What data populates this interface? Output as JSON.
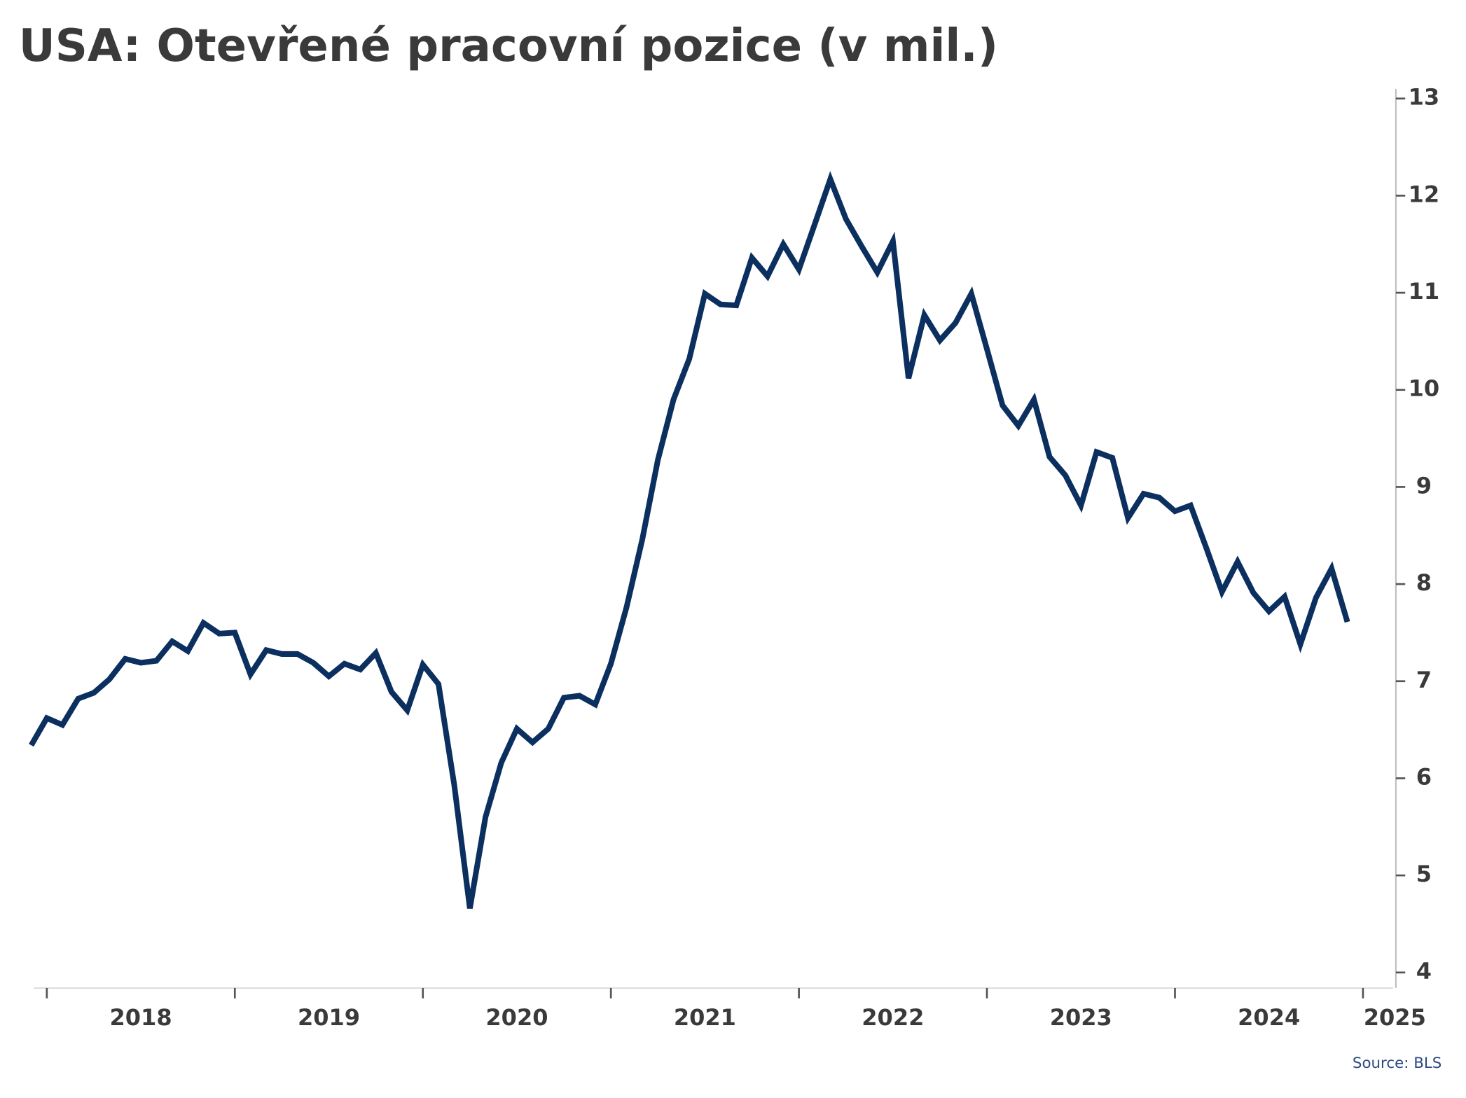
{
  "chart_data": {
    "type": "line",
    "title": "USA: Otevřené pracovní pozice (v mil.)",
    "source": "Source: BLS",
    "x": [
      2017.917,
      2018,
      2018.083,
      2018.167,
      2018.25,
      2018.333,
      2018.417,
      2018.5,
      2018.583,
      2018.667,
      2018.75,
      2018.833,
      2018.917,
      2019,
      2019.083,
      2019.167,
      2019.25,
      2019.333,
      2019.417,
      2019.5,
      2019.583,
      2019.667,
      2019.75,
      2019.833,
      2019.917,
      2020,
      2020.083,
      2020.167,
      2020.25,
      2020.333,
      2020.417,
      2020.5,
      2020.583,
      2020.667,
      2020.75,
      2020.833,
      2020.917,
      2021,
      2021.083,
      2021.167,
      2021.25,
      2021.333,
      2021.417,
      2021.5,
      2021.583,
      2021.667,
      2021.75,
      2021.833,
      2021.917,
      2022,
      2022.083,
      2022.167,
      2022.25,
      2022.333,
      2022.417,
      2022.5,
      2022.583,
      2022.667,
      2022.75,
      2022.833,
      2022.917,
      2023,
      2023.083,
      2023.167,
      2023.25,
      2023.333,
      2023.417,
      2023.5,
      2023.583,
      2023.667,
      2023.75,
      2023.833,
      2023.917,
      2024,
      2024.083,
      2024.167,
      2024.25,
      2024.333,
      2024.417,
      2024.5,
      2024.583,
      2024.667,
      2024.75,
      2024.833,
      2024.917
    ],
    "series": [
      {
        "name": "Otevřené pracovní pozice",
        "color": "#0b2f5e",
        "values": [
          6.34,
          6.62,
          6.55,
          6.82,
          6.88,
          7.02,
          7.23,
          7.19,
          7.21,
          7.41,
          7.31,
          7.6,
          7.49,
          7.5,
          7.07,
          7.32,
          7.28,
          7.28,
          7.19,
          7.05,
          7.18,
          7.12,
          7.29,
          6.89,
          6.7,
          7.17,
          6.97,
          5.93,
          4.66,
          5.6,
          6.16,
          6.51,
          6.37,
          6.51,
          6.83,
          6.85,
          6.76,
          7.18,
          7.76,
          8.46,
          9.28,
          9.9,
          10.32,
          10.99,
          10.88,
          10.87,
          11.36,
          11.17,
          11.5,
          11.24,
          11.7,
          12.17,
          11.76,
          11.48,
          11.21,
          11.53,
          10.12,
          10.77,
          10.51,
          10.69,
          10.99,
          10.42,
          9.84,
          9.63,
          9.9,
          9.31,
          9.12,
          8.81,
          9.36,
          9.3,
          8.68,
          8.93,
          8.89,
          8.75,
          8.81,
          8.37,
          7.92,
          8.23,
          7.91,
          7.72,
          7.87,
          7.38,
          7.86,
          8.16,
          7.61
        ]
      }
    ],
    "xlim": [
      2017.93,
      2025.16
    ],
    "xticks": [
      2018,
      2019,
      2020,
      2021,
      2022,
      2023,
      2024,
      2025
    ],
    "ylim": [
      3.84,
      13.1
    ],
    "yticks": [
      4,
      5,
      6,
      7,
      8,
      9,
      10,
      11,
      12,
      13
    ],
    "y_axis_side": "right",
    "grid": false
  }
}
